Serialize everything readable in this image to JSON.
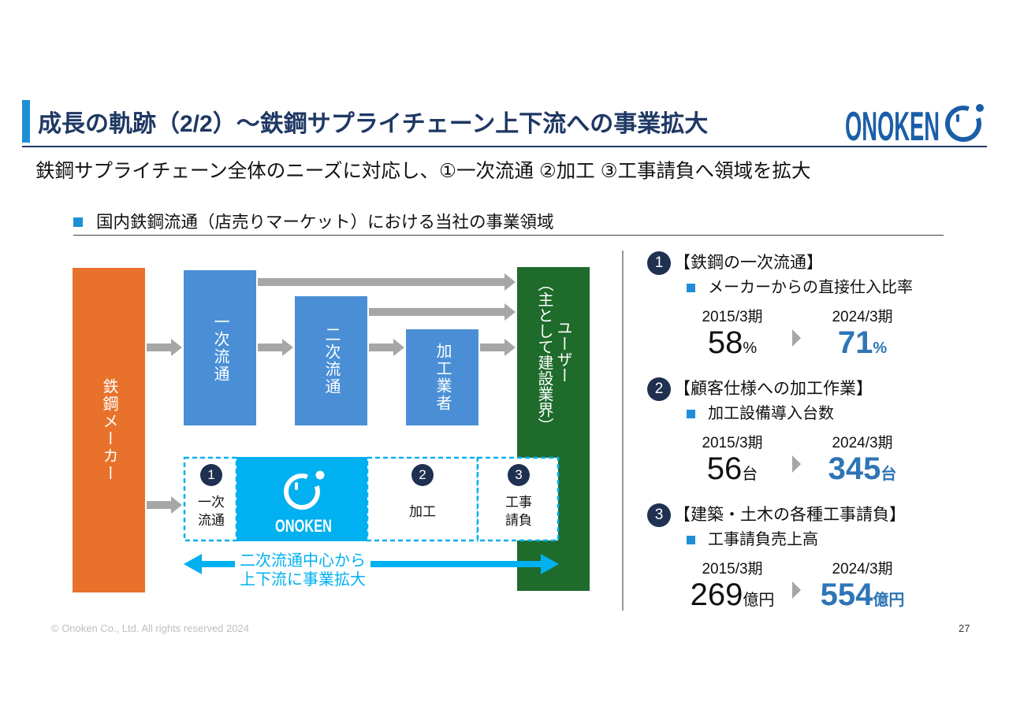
{
  "slide": {
    "title": "成長の軌跡（2/2）～鉄鋼サプライチェーン上下流への事業拡大",
    "subtitle": "鉄鋼サプライチェーン全体のニーズに対応し、①一次流通 ②加工 ③工事請負へ領域を拡大",
    "section_heading": "国内鉄鋼流通（店売りマーケット）における当社の事業領域",
    "footer": "© Onoken Co., Ltd. All rights reserved 2024",
    "page_number": "27"
  },
  "logo": {
    "text": "ONOKEN",
    "icon": "onoken-ring-icon"
  },
  "diagram": {
    "maker": "鉄鋼メーカー",
    "primary": "一次流通",
    "secondary": "二次流通",
    "processor": "加工業者",
    "user_main": "ユーザー",
    "user_note": "（主として建設業界）",
    "cells": [
      {
        "number": "1",
        "lines": [
          "一次",
          "流通"
        ]
      },
      {
        "logo_text": "ONOKEN",
        "icon": "onoken-ring-icon"
      },
      {
        "number": "2",
        "lines": [
          "加工"
        ]
      },
      {
        "number": "3",
        "lines": [
          "工事",
          "請負"
        ]
      }
    ],
    "expansion_lines": [
      "二次流通中心から",
      "上下流に事業拡大"
    ],
    "icons": {
      "flow": "arrow-right-icon",
      "expansion": "double-arrow-icon"
    }
  },
  "metrics": [
    {
      "number": "1",
      "heading": "【鉄鋼の一次流通】",
      "item": "メーカーからの直接仕入比率",
      "from_label": "2015/3期",
      "from_value": "58",
      "from_unit": "%",
      "to_label": "2024/3期",
      "to_value": "71",
      "to_unit": "%"
    },
    {
      "number": "2",
      "heading": "【顧客仕様への加工作業】",
      "item": "加工設備導入台数",
      "from_label": "2015/3期",
      "from_value": "56",
      "from_unit": "台",
      "to_label": "2024/3期",
      "to_value": "345",
      "to_unit": "台"
    },
    {
      "number": "3",
      "heading": "【建築・土木の各種工事請負】",
      "item": "工事請負売上高",
      "from_label": "2015/3期",
      "from_value": "269",
      "from_unit": "億円",
      "to_label": "2024/3期",
      "to_value": "554",
      "to_unit": "億円"
    }
  ],
  "colors": {
    "navy": "#1f3864",
    "accent_blue": "#1e8fd6",
    "logo_blue": "#1b5ea8",
    "maker_orange": "#e8722c",
    "flow_blue": "#4a8fd6",
    "user_green": "#1e6b2b",
    "onoken_cyan": "#00b0f0",
    "arrow_gray": "#a6a6a6",
    "highlight_blue": "#2e75b6",
    "badge_navy": "#1f3050"
  }
}
